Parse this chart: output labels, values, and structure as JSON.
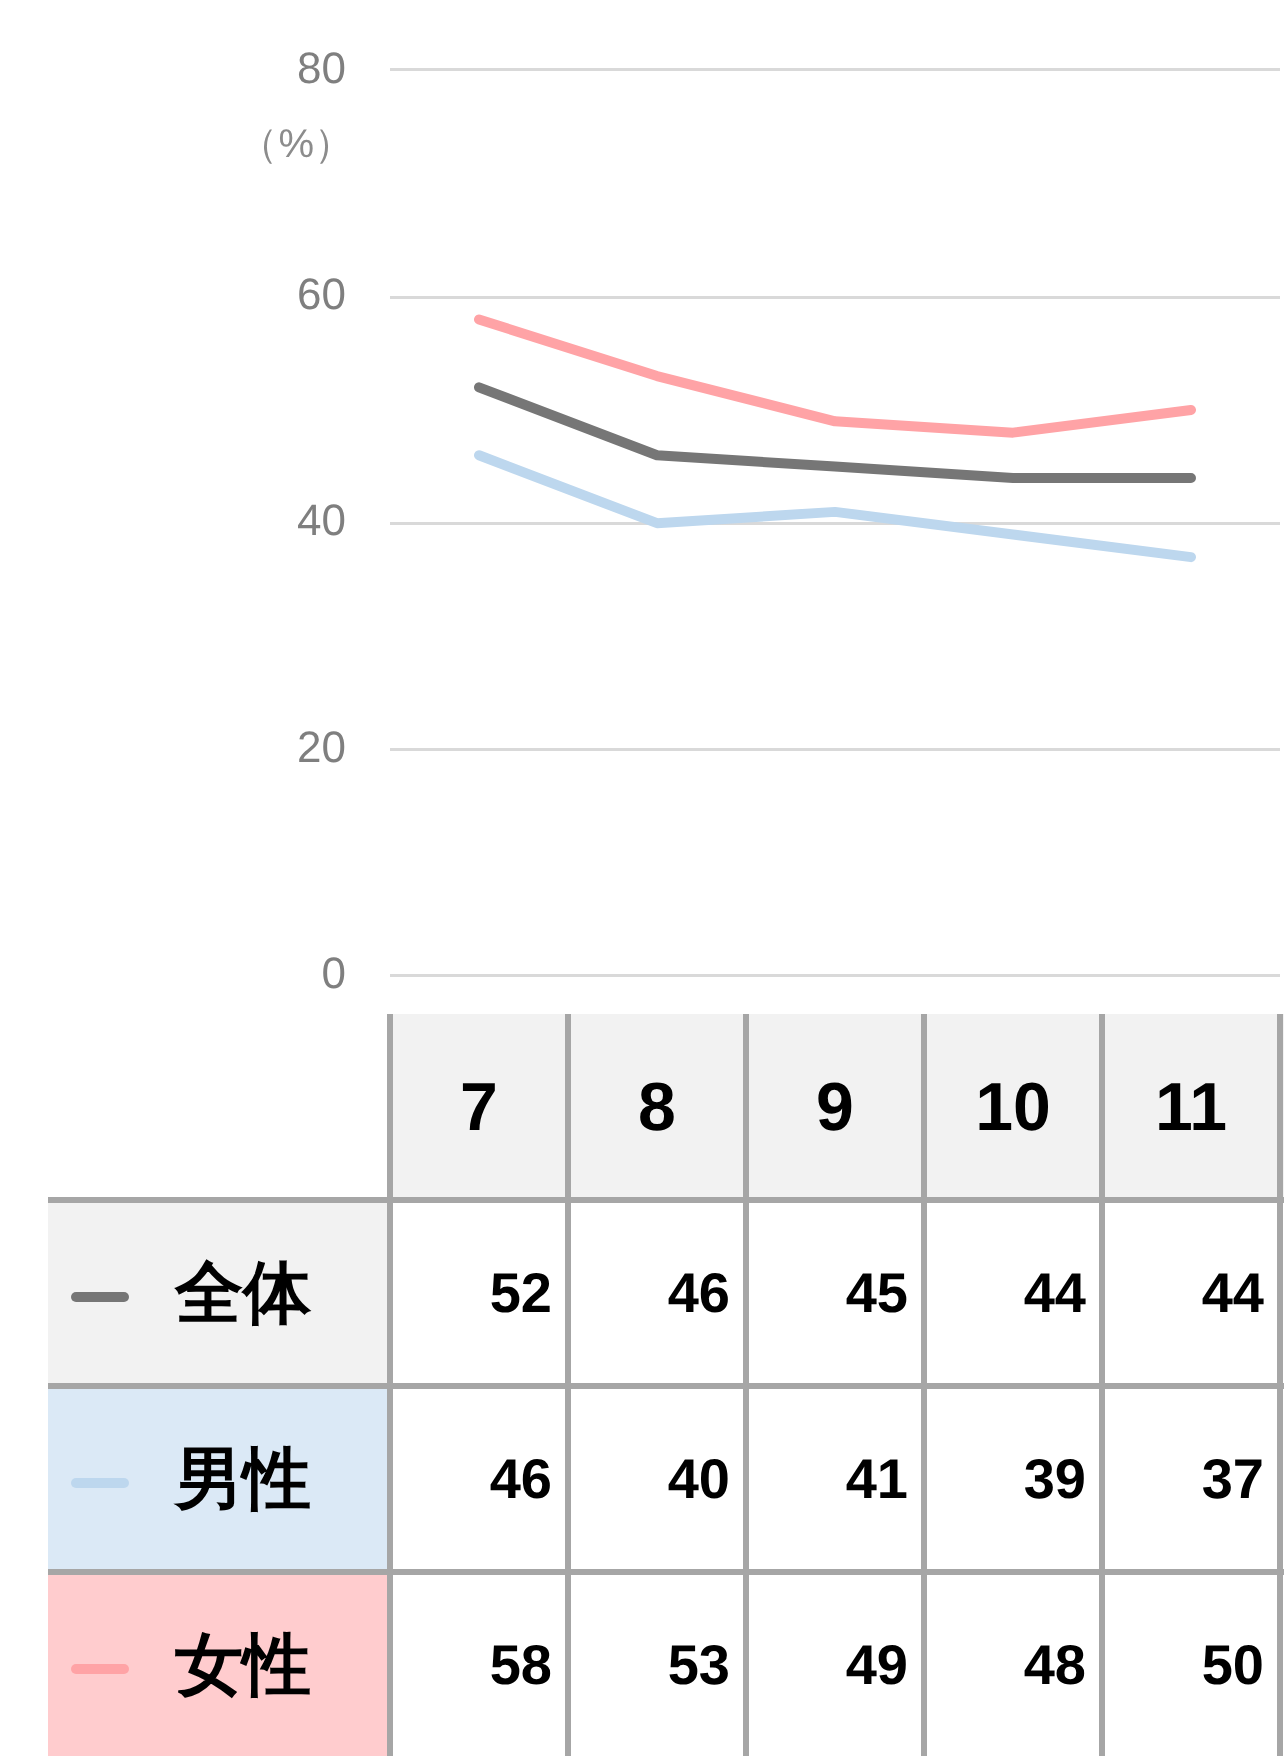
{
  "chart_data": {
    "type": "line",
    "ylabel": "（%）",
    "categories": [
      "7",
      "8",
      "9",
      "10",
      "11"
    ],
    "series": [
      {
        "name": "全体",
        "color": "#767676",
        "values": [
          52,
          46,
          45,
          44,
          44
        ]
      },
      {
        "name": "男性",
        "color": "#bdd7ee",
        "values": [
          46,
          40,
          41,
          39,
          37
        ]
      },
      {
        "name": "女性",
        "color": "#ffa3a6",
        "values": [
          58,
          53,
          49,
          48,
          50
        ]
      }
    ],
    "ylim": [
      0,
      80
    ],
    "yticks": [
      0,
      20,
      40,
      60,
      80
    ],
    "grid": "y",
    "legend": "bottom",
    "data_labels": true,
    "marker": "none",
    "line_style": "solid"
  }
}
